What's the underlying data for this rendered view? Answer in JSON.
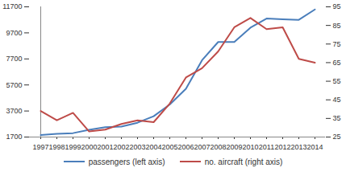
{
  "chart_data": {
    "type": "line",
    "categories": [
      "1997",
      "1998",
      "1999",
      "2000",
      "2001",
      "2002",
      "2003",
      "2004",
      "2005",
      "2006",
      "2007",
      "2008",
      "2009",
      "2010",
      "2011",
      "2012",
      "2013",
      "2014"
    ],
    "series": [
      {
        "name": "passengers (left axis)",
        "color": "#4a7ebb",
        "axis": "y",
        "values": [
          1850,
          1950,
          2000,
          2250,
          2450,
          2500,
          2800,
          3300,
          4200,
          5400,
          7600,
          9000,
          9000,
          10100,
          10800,
          10750,
          10700,
          11500
        ]
      },
      {
        "name": "no. aircraft (right axis)",
        "color": "#be4b48",
        "axis": "y2",
        "values": [
          39,
          34,
          38,
          28,
          29,
          32,
          34,
          33,
          43,
          57,
          62,
          71,
          84,
          89,
          83,
          84,
          67,
          65
        ]
      }
    ],
    "ylim": [
      1700,
      11700
    ],
    "yticks": [
      1700,
      3700,
      5700,
      7700,
      9700,
      11700
    ],
    "y2lim": [
      25,
      95
    ],
    "y2ticks": [
      25,
      35,
      45,
      55,
      65,
      75,
      85,
      95
    ],
    "legend": "bottom"
  }
}
